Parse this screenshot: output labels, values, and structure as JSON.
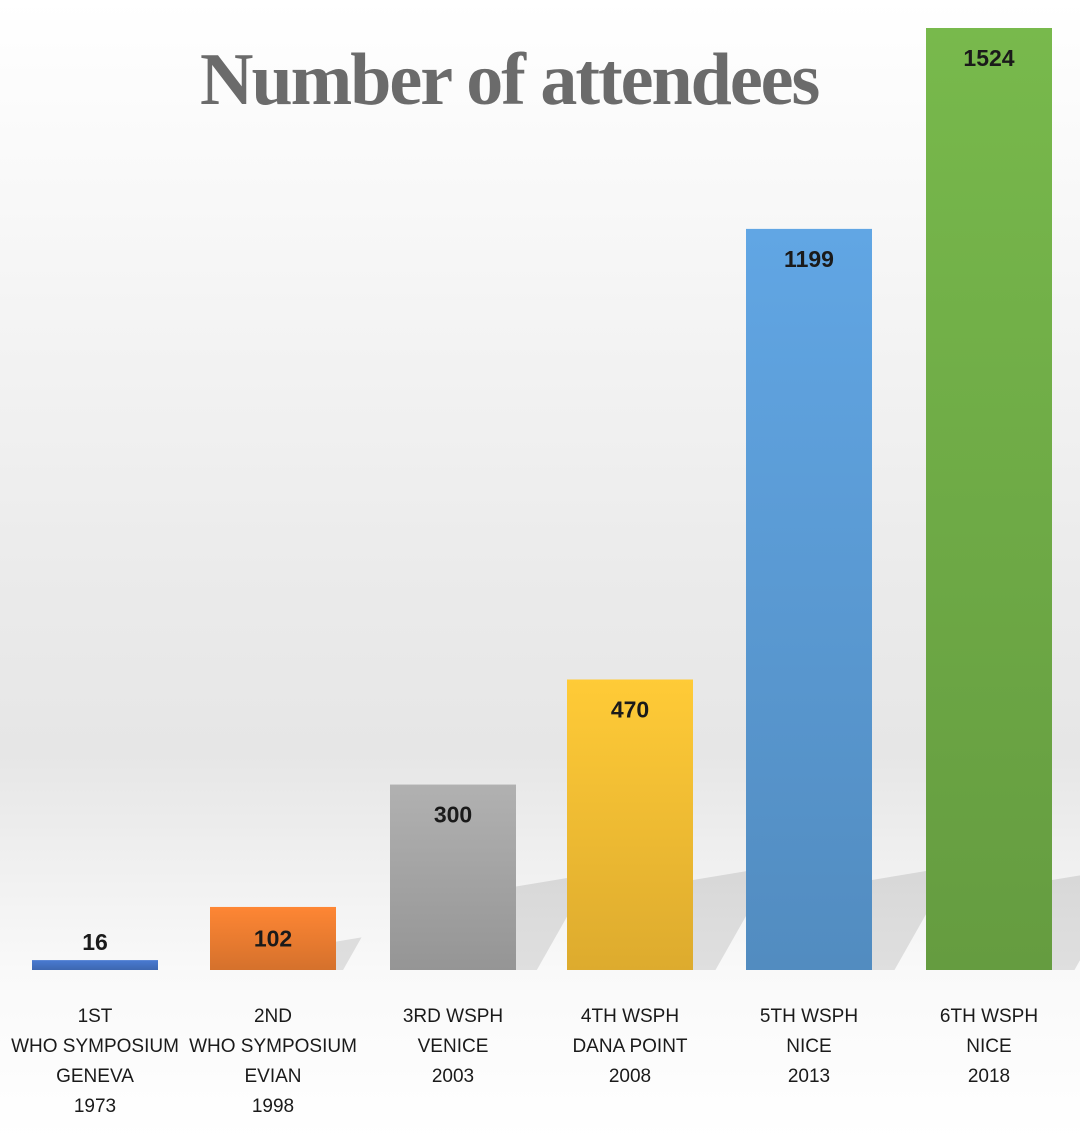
{
  "chart_data": {
    "type": "bar",
    "title": "Number of attendees",
    "categories": [
      [
        "1ST",
        "WHO SYMPOSIUM",
        "GENEVA",
        "1973"
      ],
      [
        "2ND",
        "WHO SYMPOSIUM",
        "EVIAN",
        "1998"
      ],
      [
        "3RD  WSPH",
        "VENICE",
        "2003"
      ],
      [
        "4TH  WSPH",
        "DANA POINT",
        "2008"
      ],
      [
        "5TH  WSPH",
        "NICE",
        "2013"
      ],
      [
        "6TH WSPH",
        "NICE",
        "2018"
      ]
    ],
    "values": [
      16,
      102,
      300,
      470,
      1199,
      1524
    ],
    "colors": [
      "#4472c4",
      "#ed7d31",
      "#a5a5a5",
      "#f6be33",
      "#5b9bd5",
      "#70ad47"
    ],
    "ylim": [
      0,
      1524
    ],
    "grid": false,
    "legend": "none"
  }
}
